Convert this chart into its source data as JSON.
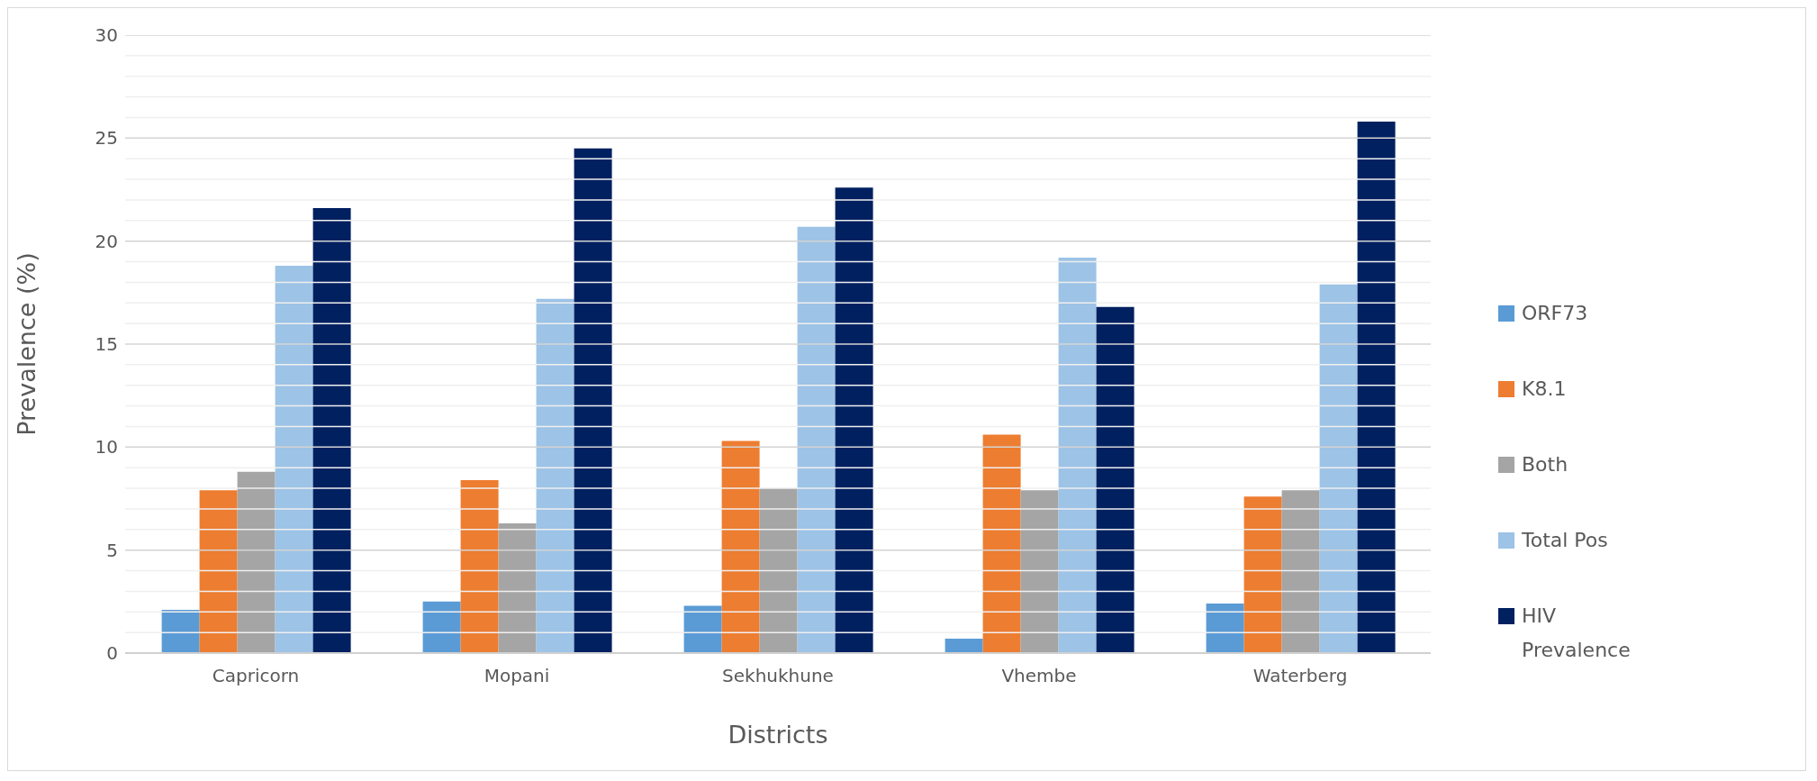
{
  "chart_data": {
    "type": "bar",
    "xlabel": "Districts",
    "ylabel": "Prevalence (%)",
    "categories": [
      "Capricorn",
      "Mopani",
      "Sekhukhune",
      "Vhembe",
      "Waterberg"
    ],
    "series": [
      {
        "name": "ORF73",
        "color": "#5b9bd5",
        "values": [
          2.1,
          2.5,
          2.3,
          0.7,
          2.4
        ]
      },
      {
        "name": "K8.1",
        "color": "#ed7d31",
        "values": [
          7.9,
          8.4,
          10.3,
          10.6,
          7.6
        ]
      },
      {
        "name": "Both",
        "color": "#a5a5a5",
        "values": [
          8.8,
          6.3,
          8.0,
          7.9,
          7.9
        ]
      },
      {
        "name": "Total Pos",
        "color": "#9dc3e6",
        "values": [
          18.8,
          17.2,
          20.7,
          19.2,
          17.9
        ]
      },
      {
        "name": "HIV Prevalence",
        "color": "#002060",
        "values": [
          21.6,
          24.5,
          22.6,
          16.8,
          25.8
        ]
      }
    ],
    "ylim": [
      0,
      30
    ],
    "yticks": [
      0,
      {
        "value": 1,
        "label": null
      },
      {
        "value": 2,
        "label": null
      },
      {
        "value": 3,
        "label": null
      },
      {
        "value": 4,
        "label": null
      },
      5,
      {
        "value": 6,
        "label": null
      },
      {
        "value": 7,
        "label": null
      },
      {
        "value": 8,
        "label": null
      },
      {
        "value": 9,
        "label": null
      },
      10,
      {
        "value": 11,
        "label": null
      },
      {
        "value": 12,
        "label": null
      },
      {
        "value": 13,
        "label": null
      },
      {
        "value": 14,
        "label": null
      },
      15,
      {
        "value": 16,
        "label": null
      },
      {
        "value": 17,
        "label": null
      },
      {
        "value": 18,
        "label": null
      },
      {
        "value": 19,
        "label": null
      },
      20,
      {
        "value": 21,
        "label": null
      },
      {
        "value": 22,
        "label": null
      },
      {
        "value": 23,
        "label": null
      },
      {
        "value": 24,
        "label": null
      },
      25,
      {
        "value": 26,
        "label": null
      },
      {
        "value": 27,
        "label": null
      },
      {
        "value": 28,
        "label": null
      },
      {
        "value": 29,
        "label": null
      },
      30
    ],
    "grid": "y",
    "legend": "right"
  }
}
